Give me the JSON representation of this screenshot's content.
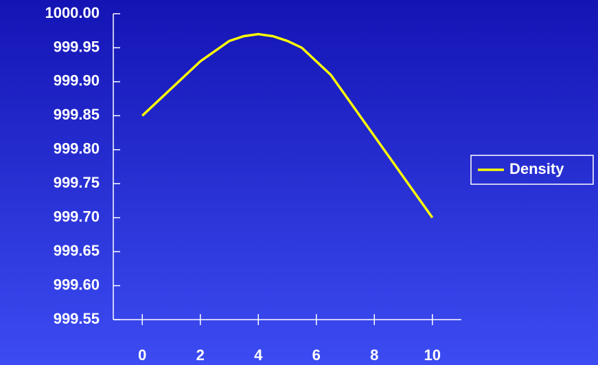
{
  "chart_data": {
    "type": "line",
    "x": [
      0,
      0.5,
      1,
      1.5,
      2,
      2.5,
      3,
      3.5,
      4,
      4.5,
      5,
      5.5,
      6,
      6.5,
      7,
      7.5,
      8,
      8.5,
      9,
      9.5,
      10
    ],
    "series": [
      {
        "name": "Density",
        "color": "#ffff00",
        "values": [
          999.85,
          999.87,
          999.89,
          999.91,
          999.93,
          999.945,
          999.96,
          999.967,
          999.97,
          999.967,
          999.96,
          999.95,
          999.93,
          999.91,
          999.88,
          999.85,
          999.82,
          999.79,
          999.76,
          999.73,
          999.7
        ]
      }
    ],
    "xlim": [
      -1,
      11
    ],
    "xticks": [
      0,
      2,
      4,
      6,
      8,
      10
    ],
    "ylim": [
      999.55,
      1000.0
    ],
    "yticks": [
      999.55,
      {
        "value": 999.6,
        "label": "999.60"
      },
      999.65,
      {
        "value": 999.7,
        "label": "999.70"
      },
      999.75,
      {
        "value": 999.8,
        "label": "999.80"
      },
      999.85,
      {
        "value": 999.9,
        "label": "999.90"
      },
      999.95,
      {
        "value": 1000.0,
        "label": "1000.00"
      }
    ],
    "legend": "right"
  }
}
